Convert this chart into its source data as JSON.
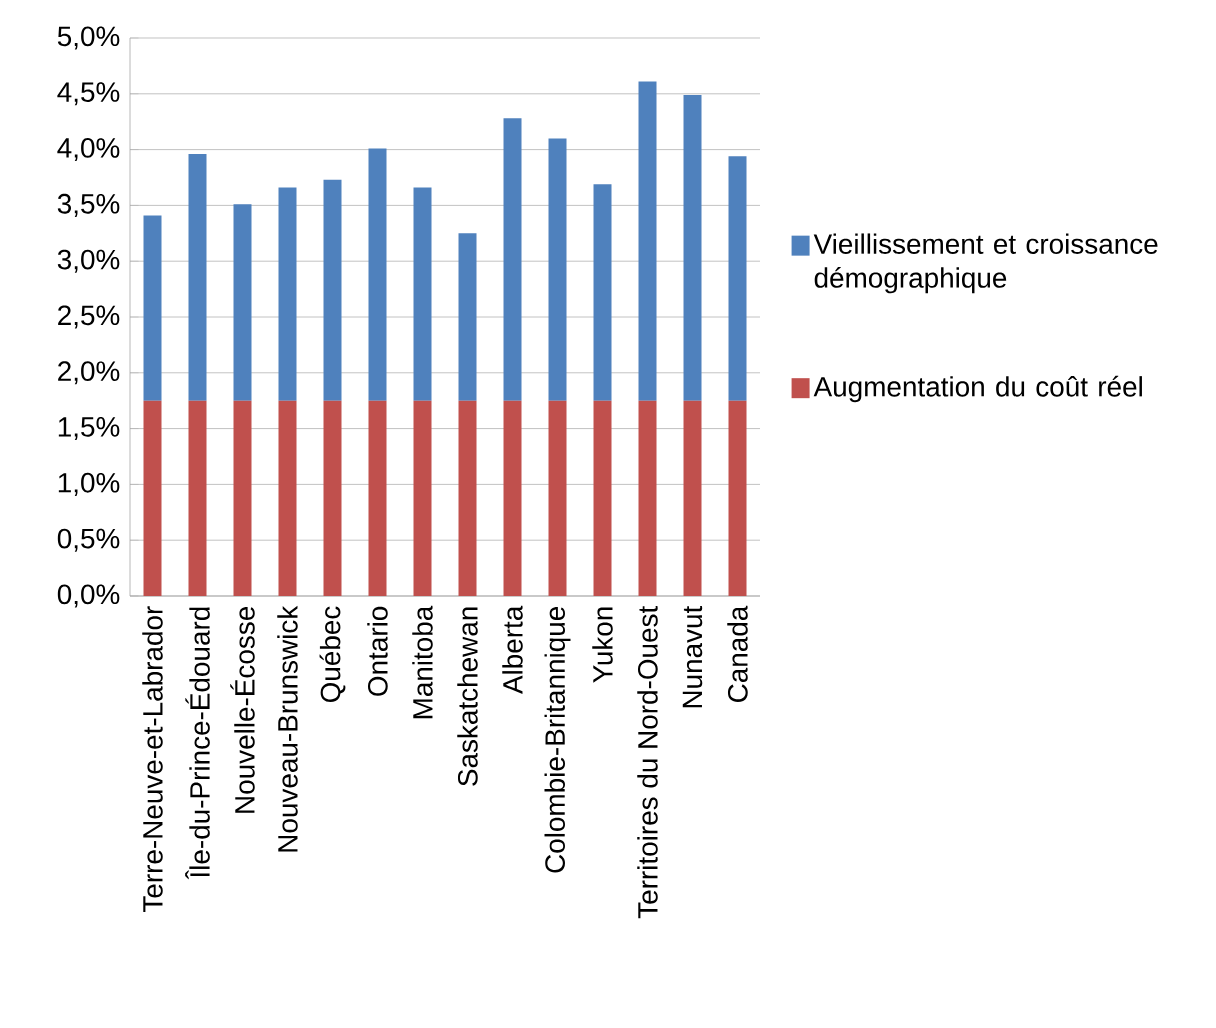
{
  "chart_data": {
    "type": "bar",
    "stacked": true,
    "categories": [
      "Terre-Neuve-et-Labrador",
      "Île-du-Prince-Édouard",
      "Nouvelle-Écosse",
      "Nouveau-Brunswick",
      "Québec",
      "Ontario",
      "Manitoba",
      "Saskatchewan",
      "Alberta",
      "Colombie-Britannique",
      "Yukon",
      "Territoires du Nord-Ouest",
      "Nunavut",
      "Canada"
    ],
    "series": [
      {
        "name": "Augmentation du coût réel",
        "color": "#c0504d",
        "values": [
          1.75,
          1.75,
          1.75,
          1.75,
          1.75,
          1.75,
          1.75,
          1.75,
          1.75,
          1.75,
          1.75,
          1.75,
          1.75,
          1.75
        ]
      },
      {
        "name": "Vieillissement et croissance démographique",
        "color": "#4f81bd",
        "values": [
          1.66,
          2.21,
          1.76,
          1.91,
          1.98,
          2.26,
          1.91,
          1.5,
          2.53,
          2.35,
          1.94,
          2.86,
          2.74,
          2.19
        ]
      }
    ],
    "ylim": [
      0,
      5
    ],
    "yticks": [
      {
        "value": 0,
        "label": "0,0%"
      },
      {
        "value": 0.5,
        "label": "0,5%"
      },
      {
        "value": 1,
        "label": "1,0%"
      },
      {
        "value": 1.5,
        "label": "1,5%"
      },
      {
        "value": 2,
        "label": "2,0%"
      },
      {
        "value": 2.5,
        "label": "2,5%"
      },
      {
        "value": 3,
        "label": "3,0%"
      },
      {
        "value": 3.5,
        "label": "3,5%"
      },
      {
        "value": 4,
        "label": "4,0%"
      },
      {
        "value": 4.5,
        "label": "4,5%"
      },
      {
        "value": 5,
        "label": "5,0%"
      }
    ],
    "grid": "y",
    "legend": "right"
  }
}
